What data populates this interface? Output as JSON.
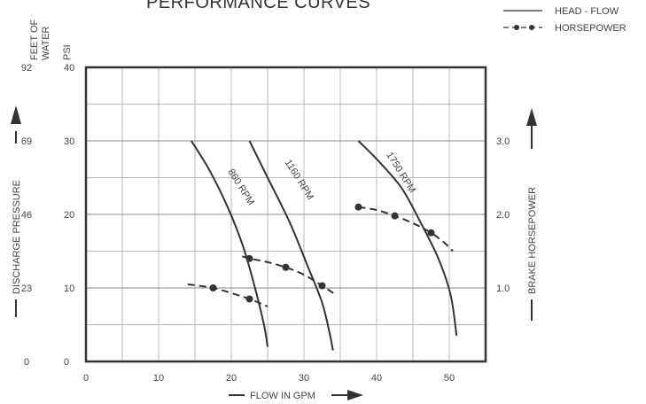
{
  "chart_data": {
    "type": "line",
    "title": "PERFORMANCE CURVES",
    "xlabel": "FLOW IN GPM",
    "ylabel": "DISCHARGE PRESSURE",
    "y_feet_header": "FEET OF WATER",
    "y_psi_header": "PSI",
    "y2label": "BRAKE HORSEPOWER",
    "xlim": [
      0,
      55
    ],
    "ylim": [
      0,
      40
    ],
    "y2lim": [
      0,
      4
    ],
    "x_ticks": [
      "0",
      "10",
      "20",
      "30",
      "40",
      "50"
    ],
    "psi_ticks": [
      "0",
      "10",
      "20",
      "30",
      "40"
    ],
    "feet_ticks": [
      "0",
      "23",
      "46",
      "69",
      "92"
    ],
    "y2_ticks": [
      "1.0",
      "2.0",
      "3.0"
    ],
    "legend": {
      "position": "top-right",
      "items": [
        {
          "label": "HEAD - FLOW",
          "style": "solid"
        },
        {
          "label": "HORSEPOWER",
          "style": "dash-dot"
        }
      ]
    },
    "head_flow_series": [
      {
        "name": "860 RPM",
        "x": [
          14.5,
          17,
          19.5,
          21.5,
          23,
          24.5,
          25
        ],
        "y": [
          30,
          26,
          21,
          16,
          11,
          5,
          2
        ]
      },
      {
        "name": "1160 RPM",
        "x": [
          22.5,
          25,
          28,
          30.5,
          32.5,
          33.5,
          34
        ],
        "y": [
          30,
          25,
          19,
          13,
          8,
          4,
          1.5
        ]
      },
      {
        "name": "1750 RPM",
        "x": [
          37.5,
          40.5,
          43.5,
          46,
          48.5,
          50.2,
          51
        ],
        "y": [
          30,
          27,
          23.5,
          19,
          14,
          9,
          3.5
        ]
      }
    ],
    "horsepower_series": [
      {
        "x": [
          14,
          17.5,
          20,
          22.5,
          25
        ],
        "y": [
          1.05,
          1.0,
          0.93,
          0.85,
          0.75
        ],
        "markers_x": [
          17.5,
          22.5
        ],
        "markers_y": [
          1.0,
          0.85
        ]
      },
      {
        "x": [
          21.5,
          22.5,
          25,
          27.5,
          30,
          32.5,
          34.5
        ],
        "y": [
          1.43,
          1.4,
          1.35,
          1.28,
          1.18,
          1.03,
          0.9
        ],
        "markers_x": [
          22.5,
          27.5,
          32.5
        ],
        "markers_y": [
          1.4,
          1.28,
          1.03
        ]
      },
      {
        "x": [
          37.5,
          40,
          42.5,
          45,
          47.5,
          49.5,
          50.5
        ],
        "y": [
          2.1,
          2.06,
          1.98,
          1.88,
          1.75,
          1.6,
          1.5
        ],
        "markers_x": [
          37.5,
          42.5,
          47.5
        ],
        "markers_y": [
          2.1,
          1.98,
          1.75
        ]
      }
    ]
  }
}
